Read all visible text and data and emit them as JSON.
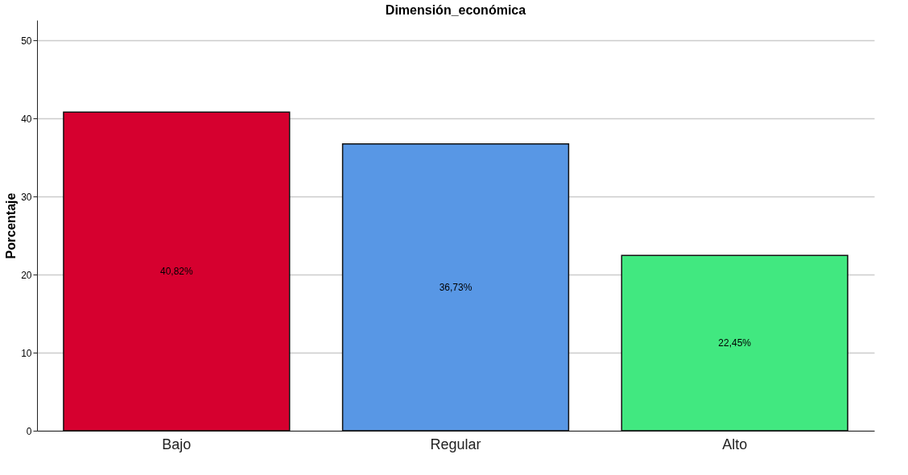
{
  "chart_data": {
    "type": "bar",
    "title": "Dimensión_económica",
    "ylabel": "Porcentaje",
    "categories": [
      "Bajo",
      "Regular",
      "Alto"
    ],
    "values": [
      40.82,
      36.73,
      22.45
    ],
    "colors": [
      "#d6002f",
      "#5897e5",
      "#41e880"
    ],
    "value_labels": [
      "40,82%",
      "36,73%",
      "22,45%"
    ],
    "ylim": [
      0,
      52.6
    ],
    "yticks": [
      0,
      10,
      20,
      30,
      40,
      50
    ],
    "grid": "y"
  }
}
